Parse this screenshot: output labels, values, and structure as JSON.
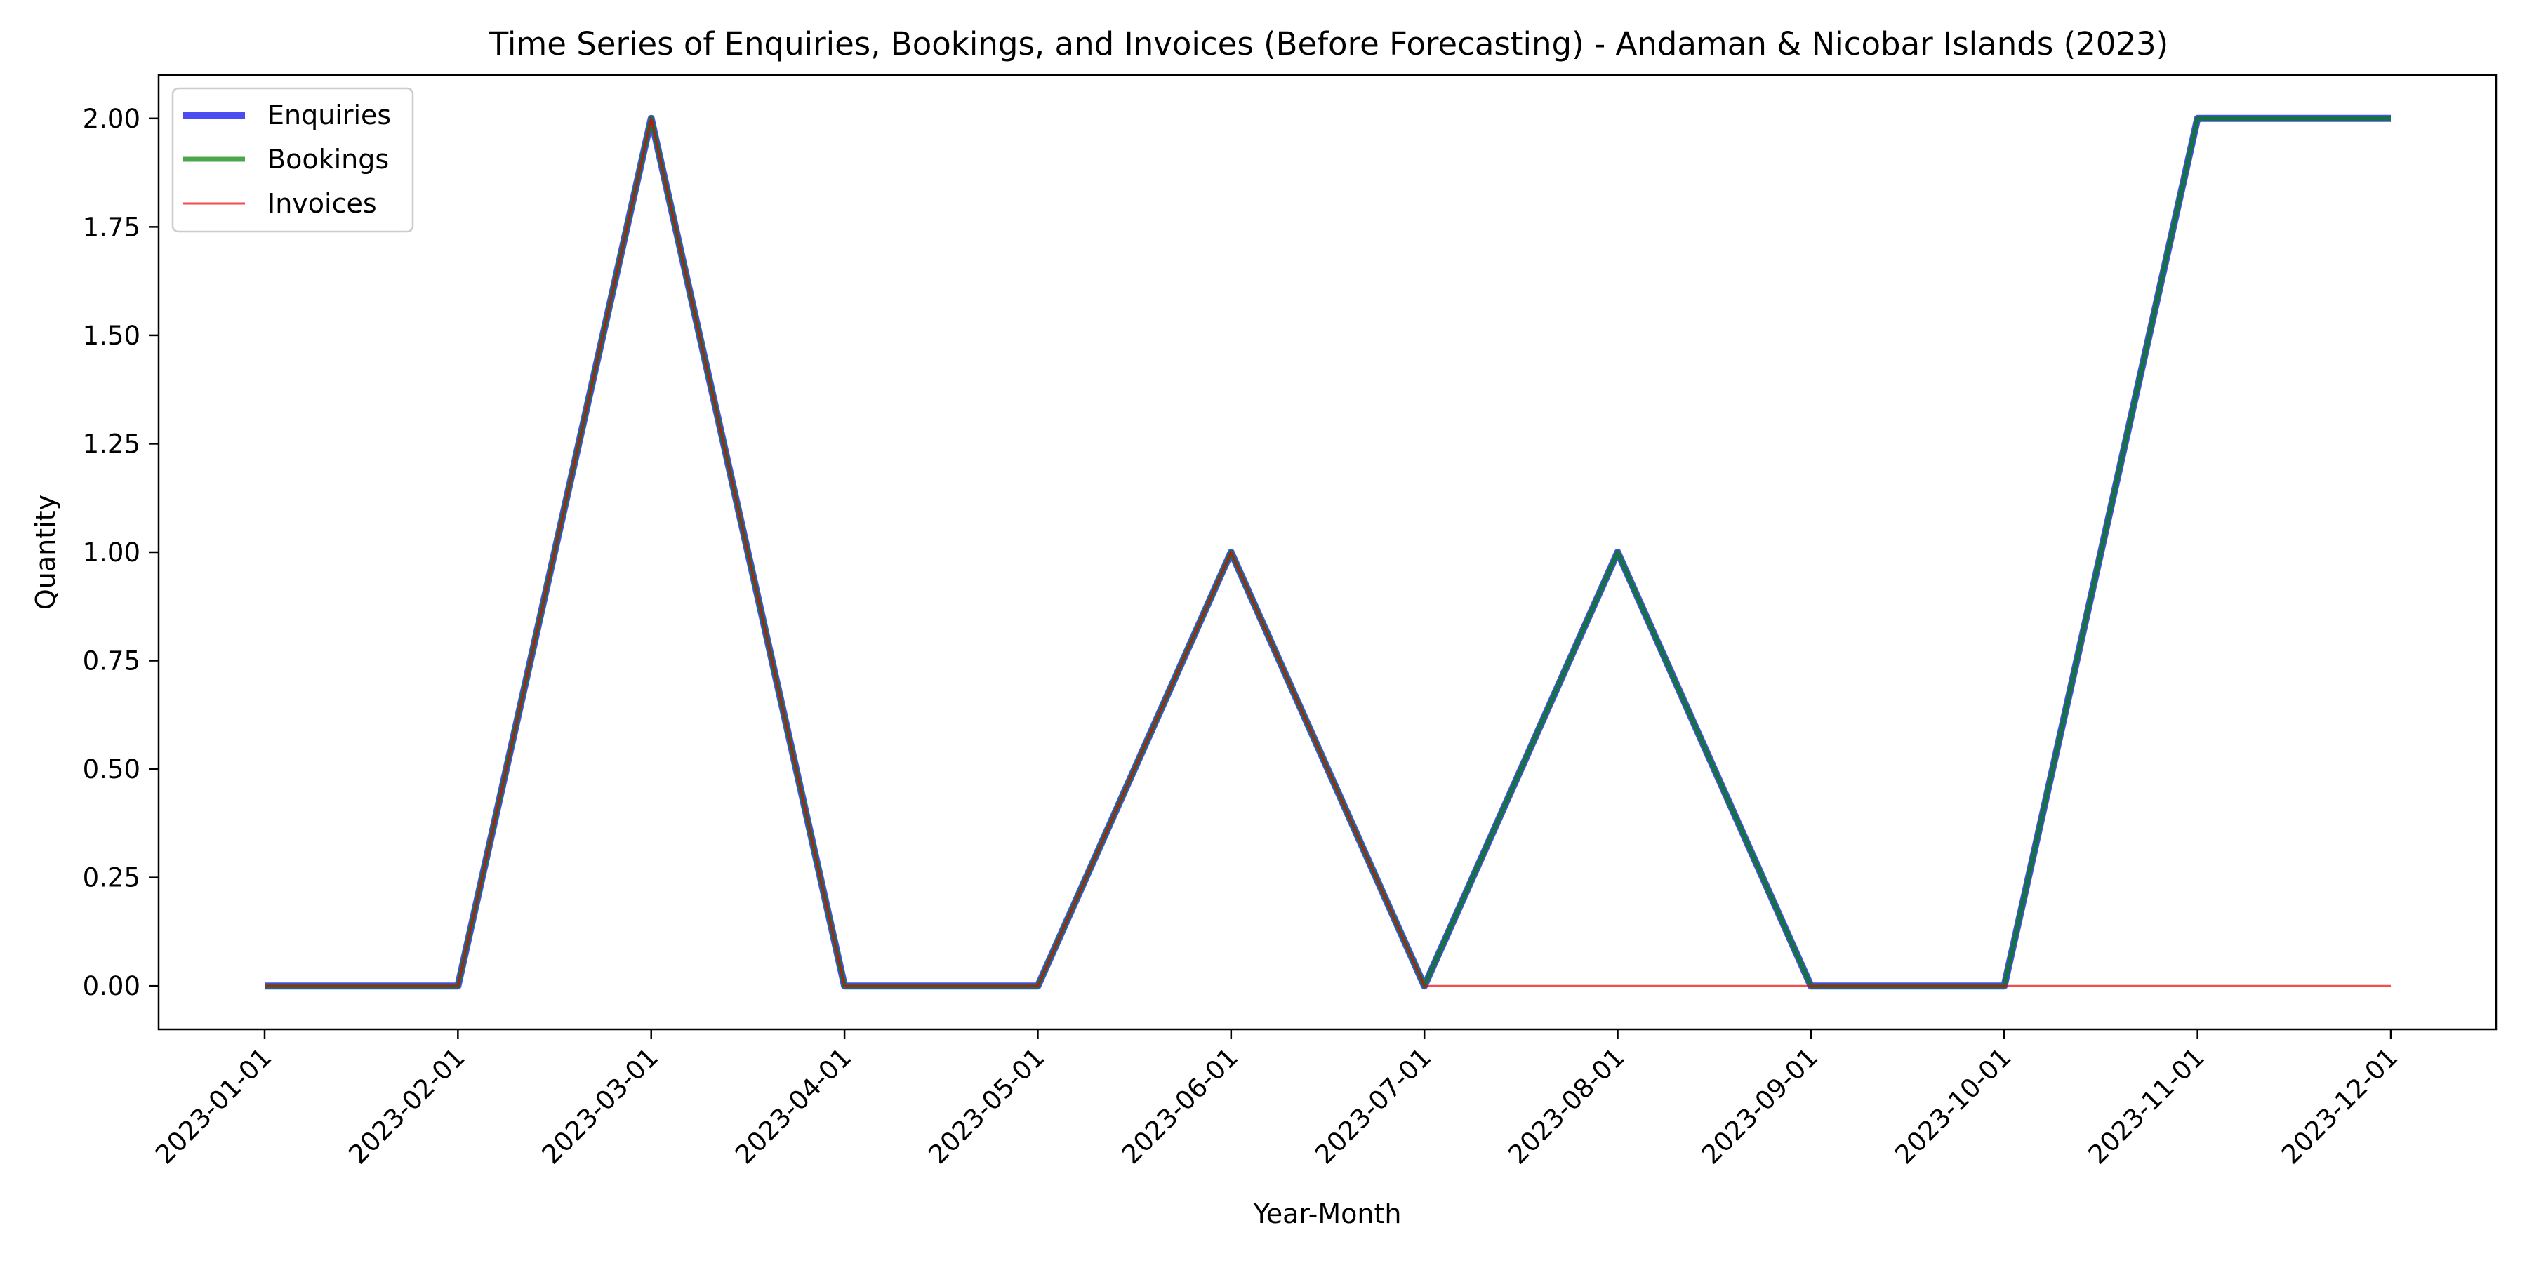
{
  "chart_data": {
    "type": "line",
    "title": "Time Series of Enquiries, Bookings, and Invoices (Before Forecasting) - Andaman & Nicobar Islands (2023)",
    "xlabel": "Year-Month",
    "ylabel": "Quantity",
    "x": [
      "2023-01-01",
      "2023-02-01",
      "2023-03-01",
      "2023-04-01",
      "2023-05-01",
      "2023-06-01",
      "2023-07-01",
      "2023-08-01",
      "2023-09-01",
      "2023-10-01",
      "2023-11-01",
      "2023-12-01"
    ],
    "ylim": [
      -0.1,
      2.1
    ],
    "yticks": [
      0.0,
      0.25,
      0.5,
      0.75,
      1.0,
      1.25,
      1.5,
      1.75,
      2.0
    ],
    "grid": false,
    "legend_position": "top-left",
    "series": [
      {
        "name": "Enquiries",
        "color": "#0000ee",
        "alpha": 0.7,
        "values": [
          0,
          0,
          2,
          0,
          0,
          1,
          0,
          1,
          0,
          0,
          2,
          2
        ]
      },
      {
        "name": "Bookings",
        "color": "#008000",
        "alpha": 0.7,
        "values": [
          0,
          0,
          2,
          0,
          0,
          1,
          0,
          1,
          0,
          0,
          2,
          2
        ]
      },
      {
        "name": "Invoices",
        "color": "#ee0000",
        "alpha": 0.7,
        "values": [
          0,
          0,
          2,
          0,
          0,
          1,
          0,
          0,
          0,
          0,
          0,
          0
        ]
      }
    ]
  }
}
